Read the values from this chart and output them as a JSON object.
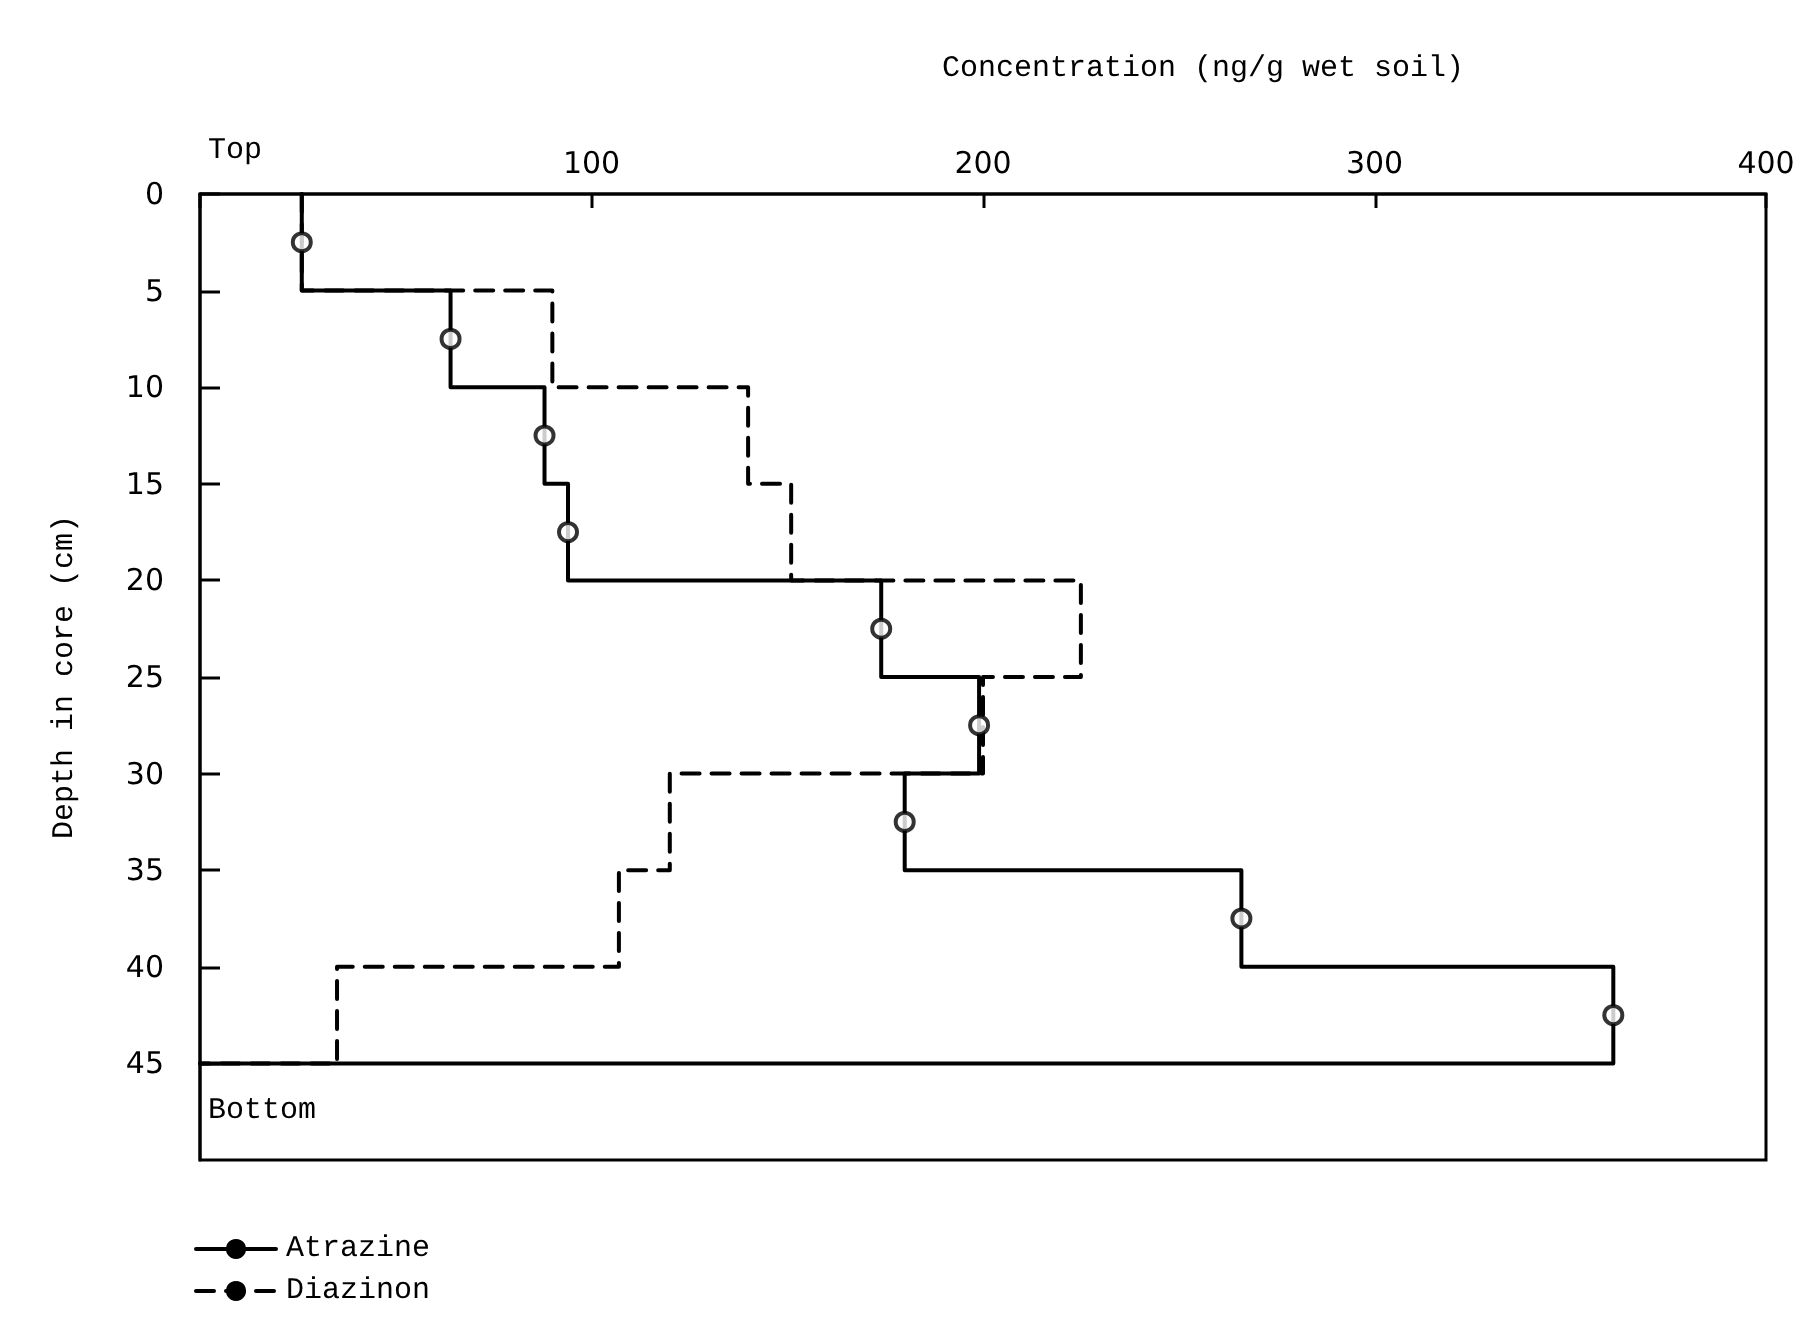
{
  "chart_data": {
    "type": "line",
    "xlabel": "Concentration (ng/g wet soil)",
    "ylabel": "Depth in core (cm)",
    "xlim": [
      0,
      400
    ],
    "xticks": [
      {
        "value": 0,
        "label": null
      },
      100,
      200,
      300,
      400
    ],
    "ylim": [
      50,
      0
    ],
    "yticks": [
      0,
      5,
      10,
      15,
      20,
      25,
      30,
      35,
      40,
      45
    ],
    "annotations": [
      "Top",
      "Bottom"
    ],
    "grid": false,
    "legend": "bottom left",
    "series": [
      {
        "name": "Atrazine",
        "color": "#000000",
        "line_style": "solid",
        "x": [
          26,
          26,
          64,
          64,
          88,
          88,
          94,
          94,
          174,
          174,
          199,
          199,
          180,
          180,
          266,
          266,
          361,
          361,
          0
        ],
        "values": [
          0,
          5,
          5,
          10,
          10,
          15,
          15,
          20,
          20,
          25,
          25,
          30,
          30,
          35,
          35,
          40,
          40,
          45,
          45
        ]
      },
      {
        "name": "Diazinon",
        "color": "#000000",
        "line_style": "dashed",
        "x": [
          26,
          26,
          90,
          90,
          140,
          140,
          151,
          151,
          225,
          225,
          200,
          200,
          120,
          120,
          107,
          107,
          35,
          35,
          0
        ],
        "values": [
          0,
          5,
          5,
          10,
          10,
          15,
          15,
          20,
          20,
          25,
          25,
          30,
          30,
          35,
          35,
          40,
          40,
          45,
          45
        ]
      },
      {
        "type": "scatter",
        "color": "#000000",
        "marker": "circle",
        "x": [
          26,
          64,
          88,
          94,
          174,
          199,
          180,
          266,
          361
        ],
        "values": [
          2.5,
          7.5,
          12.5,
          17.5,
          22.5,
          27.5,
          32.5,
          37.5,
          42.5
        ]
      }
    ]
  }
}
